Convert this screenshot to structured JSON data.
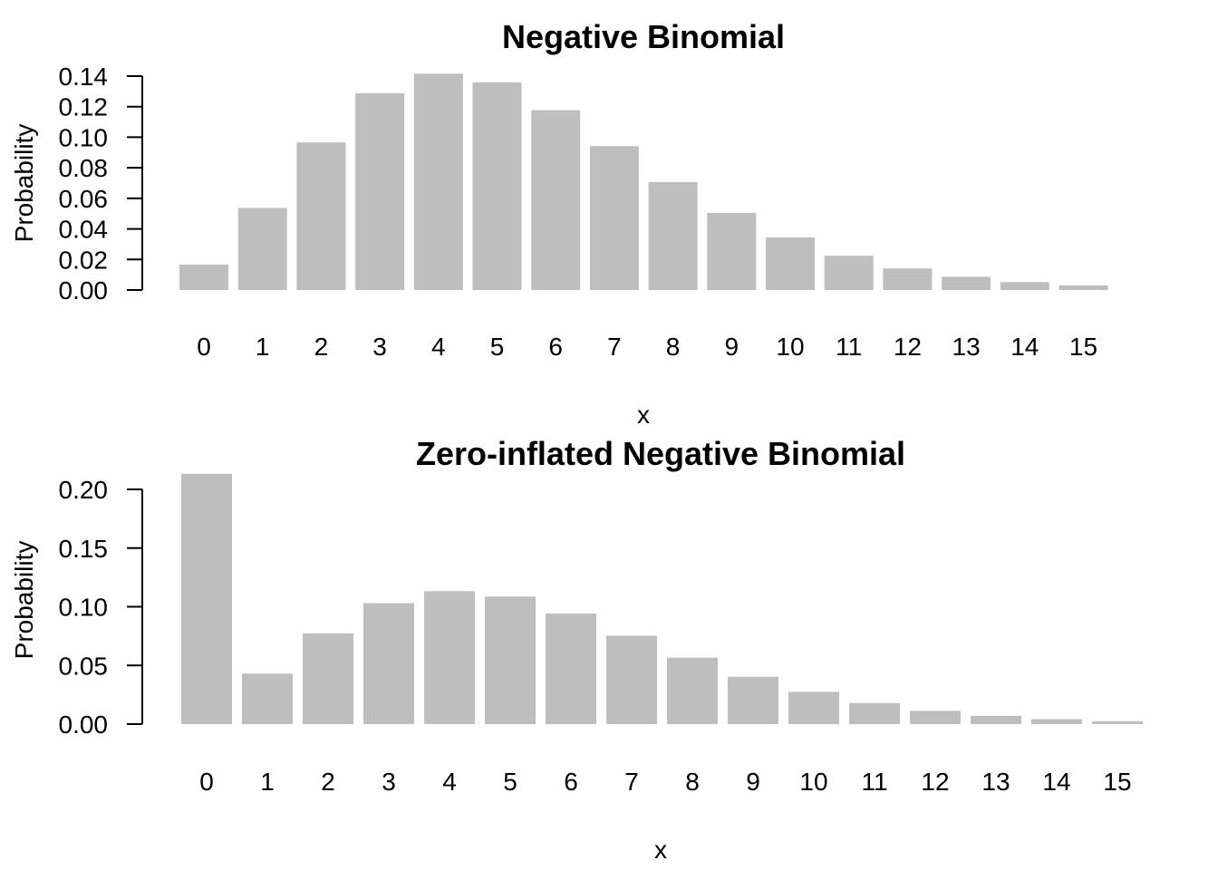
{
  "chart_data": [
    {
      "type": "bar",
      "title": "Negative Binomial",
      "xlabel": "x",
      "ylabel": "Probability",
      "categories": [
        "0",
        "1",
        "2",
        "3",
        "4",
        "5",
        "6",
        "7",
        "8",
        "9",
        "10",
        "11",
        "12",
        "13",
        "14",
        "15"
      ],
      "values": [
        0.0166,
        0.0537,
        0.0966,
        0.1288,
        0.1416,
        0.1359,
        0.1177,
        0.0942,
        0.0707,
        0.0504,
        0.0344,
        0.0224,
        0.0141,
        0.0087,
        0.0052,
        0.003
      ],
      "ylim": [
        0,
        0.14
      ],
      "yticks": [
        "0.00",
        "0.02",
        "0.04",
        "0.06",
        "0.08",
        "0.10",
        "0.12",
        "0.14"
      ],
      "bar_color": "#bebebe",
      "grid": false
    },
    {
      "type": "bar",
      "title": "Zero-inflated Negative Binomial",
      "xlabel": "x",
      "ylabel": "Probability",
      "categories": [
        "0",
        "1",
        "2",
        "3",
        "4",
        "5",
        "6",
        "7",
        "8",
        "9",
        "10",
        "11",
        "12",
        "13",
        "14",
        "15"
      ],
      "values": [
        0.2133,
        0.043,
        0.0773,
        0.103,
        0.1133,
        0.1087,
        0.0942,
        0.0754,
        0.0566,
        0.0403,
        0.0275,
        0.0179,
        0.0113,
        0.007,
        0.0042,
        0.0024
      ],
      "ylim": [
        0,
        0.2
      ],
      "yticks": [
        "0.00",
        "0.05",
        "0.10",
        "0.15",
        "0.20"
      ],
      "bar_color": "#bebebe",
      "grid": false
    }
  ]
}
